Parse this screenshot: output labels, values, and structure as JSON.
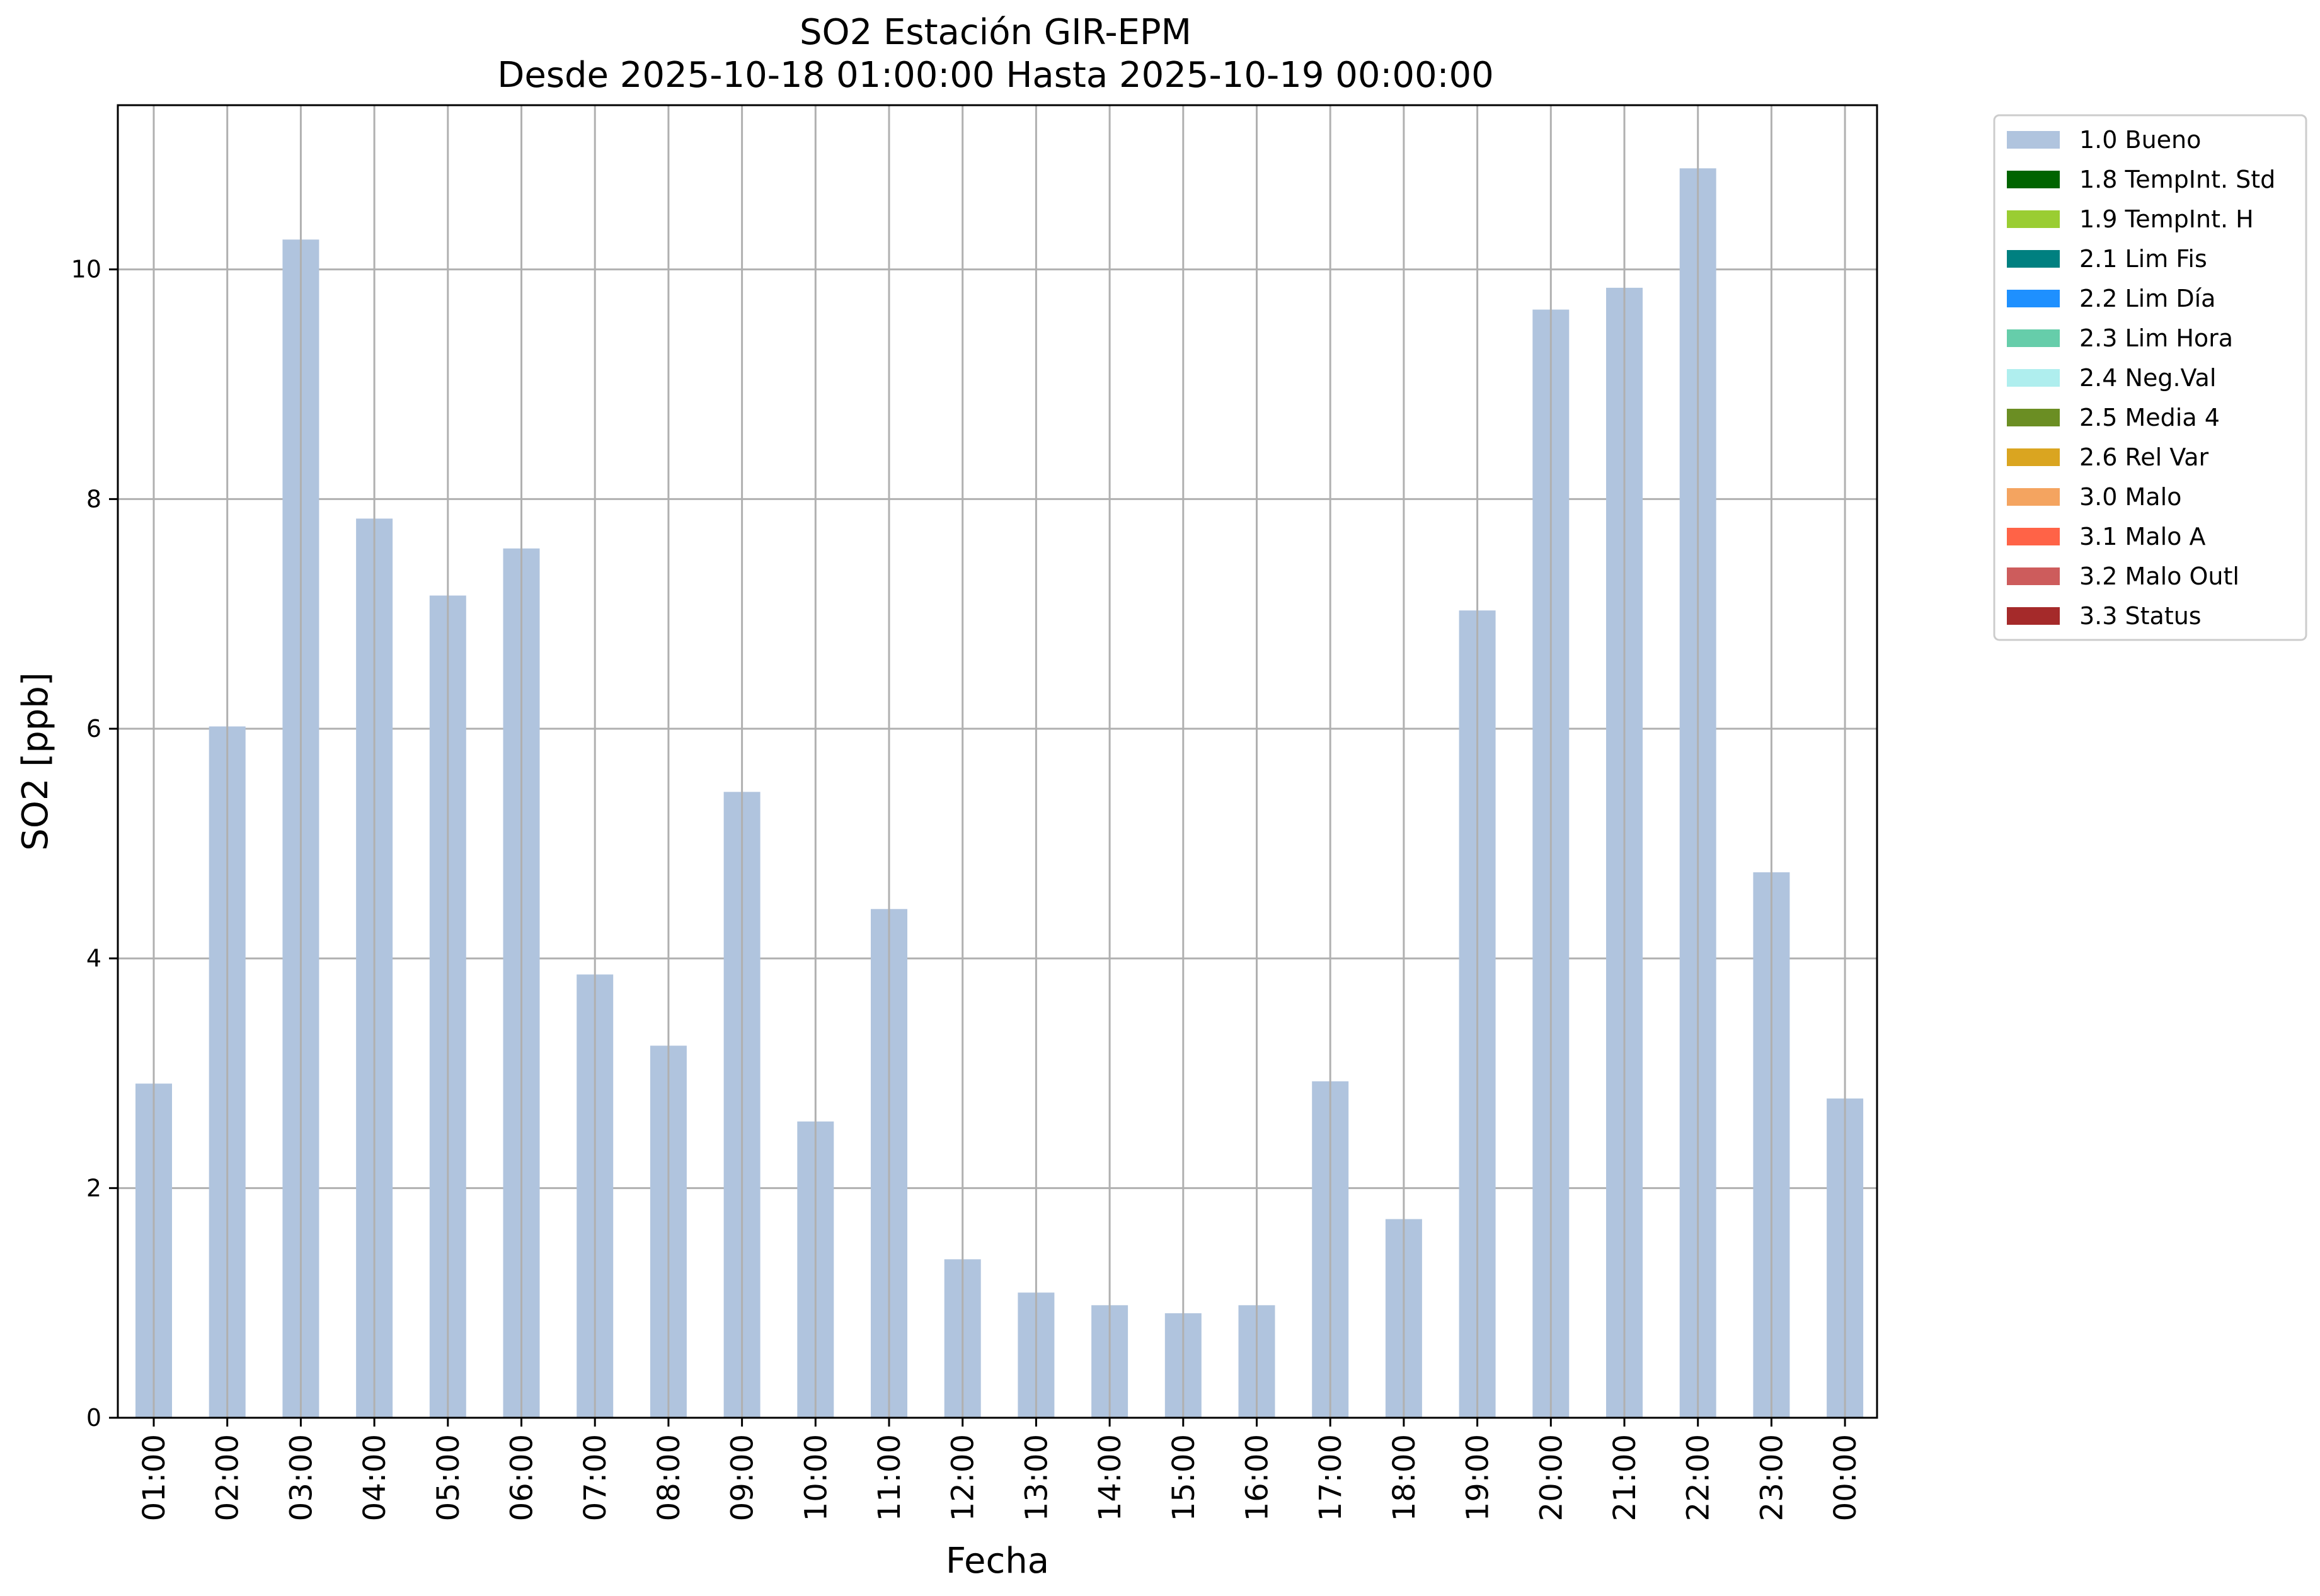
{
  "chart_data": {
    "type": "bar",
    "title": "SO2 Estación GIR-EPM",
    "subtitle": "Desde 2025-10-18 01:00:00 Hasta 2025-10-19 00:00:00",
    "xlabel": "Fecha",
    "ylabel": "SO2 [ppb]",
    "ylim": [
      0,
      11.43
    ],
    "yticks": [
      "0",
      "2",
      "4",
      "6",
      "8",
      "10"
    ],
    "grid": true,
    "legend_position": "outside-right-top",
    "categories": [
      "01:00",
      "02:00",
      "03:00",
      "04:00",
      "05:00",
      "06:00",
      "07:00",
      "08:00",
      "09:00",
      "10:00",
      "11:00",
      "12:00",
      "13:00",
      "14:00",
      "15:00",
      "16:00",
      "17:00",
      "18:00",
      "19:00",
      "20:00",
      "21:00",
      "22:00",
      "23:00",
      "00:00"
    ],
    "series": [
      {
        "name": "1.0 Bueno",
        "color": "#b0c4de",
        "values": [
          2.91,
          6.02,
          10.26,
          7.83,
          7.16,
          7.57,
          3.86,
          3.24,
          5.45,
          2.58,
          4.43,
          1.38,
          1.09,
          0.98,
          0.91,
          0.98,
          2.93,
          1.73,
          7.03,
          9.65,
          9.84,
          10.88,
          4.75,
          2.78
        ]
      }
    ],
    "legend": [
      {
        "label": "1.0 Bueno",
        "color": "#b0c4de"
      },
      {
        "label": "1.8 TempInt. Std",
        "color": "#006400"
      },
      {
        "label": "1.9 TempInt. H",
        "color": "#9acd32"
      },
      {
        "label": "2.1 Lim Fis",
        "color": "#008080"
      },
      {
        "label": "2.2 Lim Día",
        "color": "#1e90ff"
      },
      {
        "label": "2.3 Lim Hora",
        "color": "#66cdaa"
      },
      {
        "label": "2.4 Neg.Val",
        "color": "#afeeee"
      },
      {
        "label": "2.5 Media 4",
        "color": "#6b8e23"
      },
      {
        "label": "2.6 Rel Var",
        "color": "#daa520"
      },
      {
        "label": "3.0 Malo",
        "color": "#f4a460"
      },
      {
        "label": "3.1 Malo A",
        "color": "#ff6347"
      },
      {
        "label": "3.2 Malo Outl",
        "color": "#cd5c5c"
      },
      {
        "label": "3.3 Status",
        "color": "#a52a2a"
      }
    ]
  }
}
